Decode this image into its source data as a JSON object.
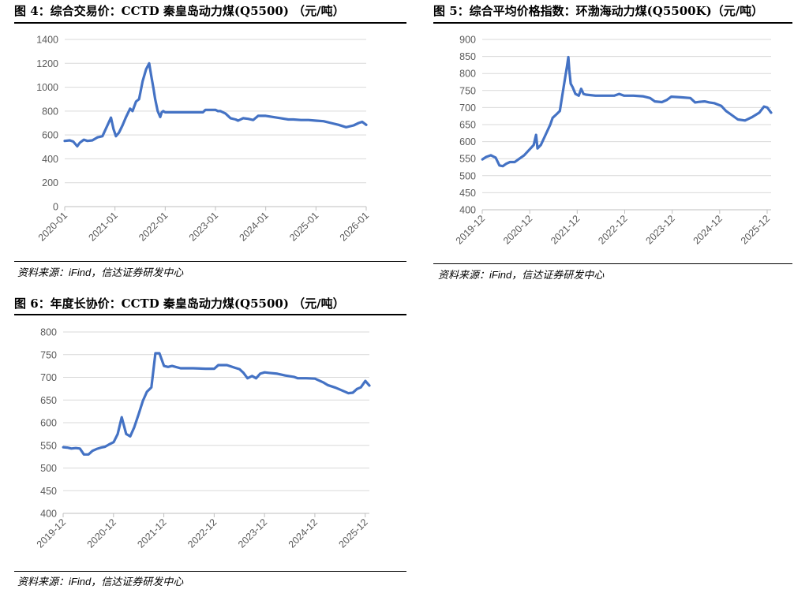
{
  "panels": [
    {
      "title": "图 4：综合交易价：CCTD 秦皇岛动力煤(Q5500) （元/吨）",
      "source_prefix": "资料来源：",
      "source_brand": "iFind",
      "source_suffix": "，信达证券研发中心"
    },
    {
      "title": "图 5：综合平均价格指数：环渤海动力煤(Q5500K)（元/吨）",
      "source_prefix": "资料来源：",
      "source_brand": "iFind",
      "source_suffix": "，信达证券研发中心"
    },
    {
      "title": "图 6：年度长协价：CCTD 秦皇岛动力煤(Q5500) （元/吨）",
      "source_prefix": "资料来源：",
      "source_brand": "iFind",
      "source_suffix": "，信达证券研发中心"
    }
  ],
  "colors": {
    "line": "#4472C4",
    "grid": "#D9D9D9",
    "axis": "#BFBFBF",
    "tick_text": "#595959"
  },
  "chart_data": [
    {
      "type": "line",
      "title": "综合交易价：CCTD 秦皇岛动力煤(Q5500)",
      "ylim": [
        0,
        1400
      ],
      "y_ticks": [
        0,
        200,
        400,
        600,
        800,
        1000,
        1200,
        1400
      ],
      "x_range": [
        2020.0,
        2026.0
      ],
      "x_ticks": [
        2020.0,
        2021.0,
        2022.0,
        2023.0,
        2024.0,
        2025.0,
        2026.0
      ],
      "x_tick_labels": [
        "2020-01",
        "2021-01",
        "2022-01",
        "2023-01",
        "2024-01",
        "2025-01",
        "2026-01"
      ],
      "grid": true,
      "series": [
        {
          "x": [
            2020.0,
            2020.1,
            2020.17,
            2020.25,
            2020.3,
            2020.38,
            2020.45,
            2020.55,
            2020.65,
            2020.75,
            2020.85,
            2020.92,
            2020.97,
            2021.02,
            2021.08,
            2021.15,
            2021.22,
            2021.3,
            2021.35,
            2021.42,
            2021.48,
            2021.55,
            2021.62,
            2021.68,
            2021.72,
            2021.77,
            2021.8,
            2021.85,
            2021.9,
            2021.93,
            2021.96,
            2022.0,
            2022.05,
            2022.2,
            2022.4,
            2022.6,
            2022.75,
            2022.8,
            2022.9,
            2023.0,
            2023.05,
            2023.1,
            2023.2,
            2023.3,
            2023.4,
            2023.45,
            2023.55,
            2023.65,
            2023.75,
            2023.85,
            2024.0,
            2024.15,
            2024.3,
            2024.45,
            2024.55,
            2024.7,
            2024.85,
            2025.0,
            2025.15,
            2025.3,
            2025.45,
            2025.6,
            2025.75,
            2025.85,
            2025.92,
            2026.0
          ],
          "values": [
            550,
            555,
            545,
            505,
            535,
            560,
            550,
            555,
            580,
            590,
            680,
            745,
            650,
            590,
            620,
            680,
            750,
            820,
            800,
            880,
            900,
            1050,
            1150,
            1200,
            1100,
            980,
            900,
            800,
            750,
            790,
            800,
            790,
            790,
            790,
            790,
            790,
            790,
            810,
            810,
            810,
            800,
            800,
            780,
            740,
            730,
            720,
            740,
            735,
            725,
            760,
            760,
            750,
            740,
            730,
            730,
            725,
            725,
            720,
            715,
            700,
            685,
            665,
            680,
            700,
            710,
            685
          ]
        }
      ]
    },
    {
      "type": "line",
      "title": "综合平均价格指数：环渤海动力煤(Q5500K)",
      "ylim": [
        400,
        900
      ],
      "y_ticks": [
        400,
        450,
        500,
        550,
        600,
        650,
        700,
        750,
        800,
        850,
        900
      ],
      "x_range": [
        2019.917,
        2026.0
      ],
      "x_ticks": [
        2019.917,
        2020.917,
        2021.917,
        2022.917,
        2023.917,
        2024.917,
        2025.917
      ],
      "x_tick_labels": [
        "2019-12",
        "2020-12",
        "2021-12",
        "2022-12",
        "2023-12",
        "2024-12",
        "2025-12"
      ],
      "grid": true,
      "series": [
        {
          "x": [
            2019.92,
            2020.0,
            2020.1,
            2020.2,
            2020.28,
            2020.35,
            2020.42,
            2020.5,
            2020.6,
            2020.7,
            2020.8,
            2020.9,
            2021.0,
            2021.05,
            2021.08,
            2021.15,
            2021.25,
            2021.35,
            2021.4,
            2021.48,
            2021.55,
            2021.63,
            2021.7,
            2021.73,
            2021.75,
            2021.78,
            2021.82,
            2021.88,
            2021.95,
            2022.0,
            2022.05,
            2022.1,
            2022.3,
            2022.5,
            2022.7,
            2022.8,
            2022.9,
            2023.1,
            2023.3,
            2023.45,
            2023.55,
            2023.7,
            2023.8,
            2023.9,
            2024.1,
            2024.3,
            2024.4,
            2024.5,
            2024.6,
            2024.7,
            2024.8,
            2024.95,
            2025.05,
            2025.15,
            2025.3,
            2025.45,
            2025.6,
            2025.75,
            2025.85,
            2025.92,
            2026.0
          ],
          "values": [
            548,
            555,
            560,
            553,
            530,
            528,
            535,
            540,
            540,
            550,
            560,
            575,
            590,
            620,
            580,
            590,
            620,
            650,
            670,
            680,
            690,
            760,
            820,
            848,
            810,
            770,
            760,
            740,
            735,
            755,
            740,
            738,
            735,
            735,
            735,
            740,
            735,
            735,
            733,
            728,
            718,
            716,
            722,
            732,
            730,
            728,
            715,
            717,
            718,
            715,
            713,
            705,
            690,
            680,
            665,
            662,
            672,
            685,
            703,
            700,
            685
          ]
        }
      ]
    },
    {
      "type": "line",
      "title": "年度长协价：CCTD 秦皇岛动力煤(Q5500)",
      "ylim": [
        400,
        800
      ],
      "y_ticks": [
        400,
        450,
        500,
        550,
        600,
        650,
        700,
        750,
        800
      ],
      "x_range": [
        2019.917,
        2026.0
      ],
      "x_ticks": [
        2019.917,
        2020.917,
        2021.917,
        2022.917,
        2023.917,
        2024.917,
        2025.917
      ],
      "x_tick_labels": [
        "2019-12",
        "2020-12",
        "2021-12",
        "2022-12",
        "2023-12",
        "2024-12",
        "2025-12"
      ],
      "grid": true,
      "series": [
        {
          "x": [
            2019.92,
            2020.0,
            2020.08,
            2020.17,
            2020.25,
            2020.33,
            2020.42,
            2020.5,
            2020.58,
            2020.67,
            2020.75,
            2020.83,
            2020.92,
            2021.0,
            2021.08,
            2021.17,
            2021.25,
            2021.33,
            2021.42,
            2021.5,
            2021.58,
            2021.67,
            2021.75,
            2021.83,
            2021.92,
            2022.0,
            2022.08,
            2022.25,
            2022.5,
            2022.75,
            2022.92,
            2023.0,
            2023.17,
            2023.33,
            2023.42,
            2023.5,
            2023.58,
            2023.67,
            2023.75,
            2023.83,
            2023.92,
            2024.0,
            2024.17,
            2024.33,
            2024.5,
            2024.58,
            2024.75,
            2024.92,
            2025.08,
            2025.17,
            2025.33,
            2025.5,
            2025.58,
            2025.67,
            2025.75,
            2025.83,
            2025.92,
            2026.0
          ],
          "values": [
            546,
            545,
            543,
            544,
            543,
            530,
            530,
            538,
            542,
            545,
            547,
            552,
            557,
            575,
            612,
            575,
            570,
            590,
            620,
            648,
            668,
            678,
            753,
            753,
            725,
            723,
            725,
            720,
            720,
            719,
            719,
            727,
            727,
            721,
            718,
            710,
            698,
            703,
            698,
            708,
            711,
            710,
            708,
            704,
            701,
            698,
            698,
            697,
            689,
            683,
            677,
            669,
            665,
            666,
            674,
            678,
            692,
            682
          ]
        }
      ]
    }
  ]
}
